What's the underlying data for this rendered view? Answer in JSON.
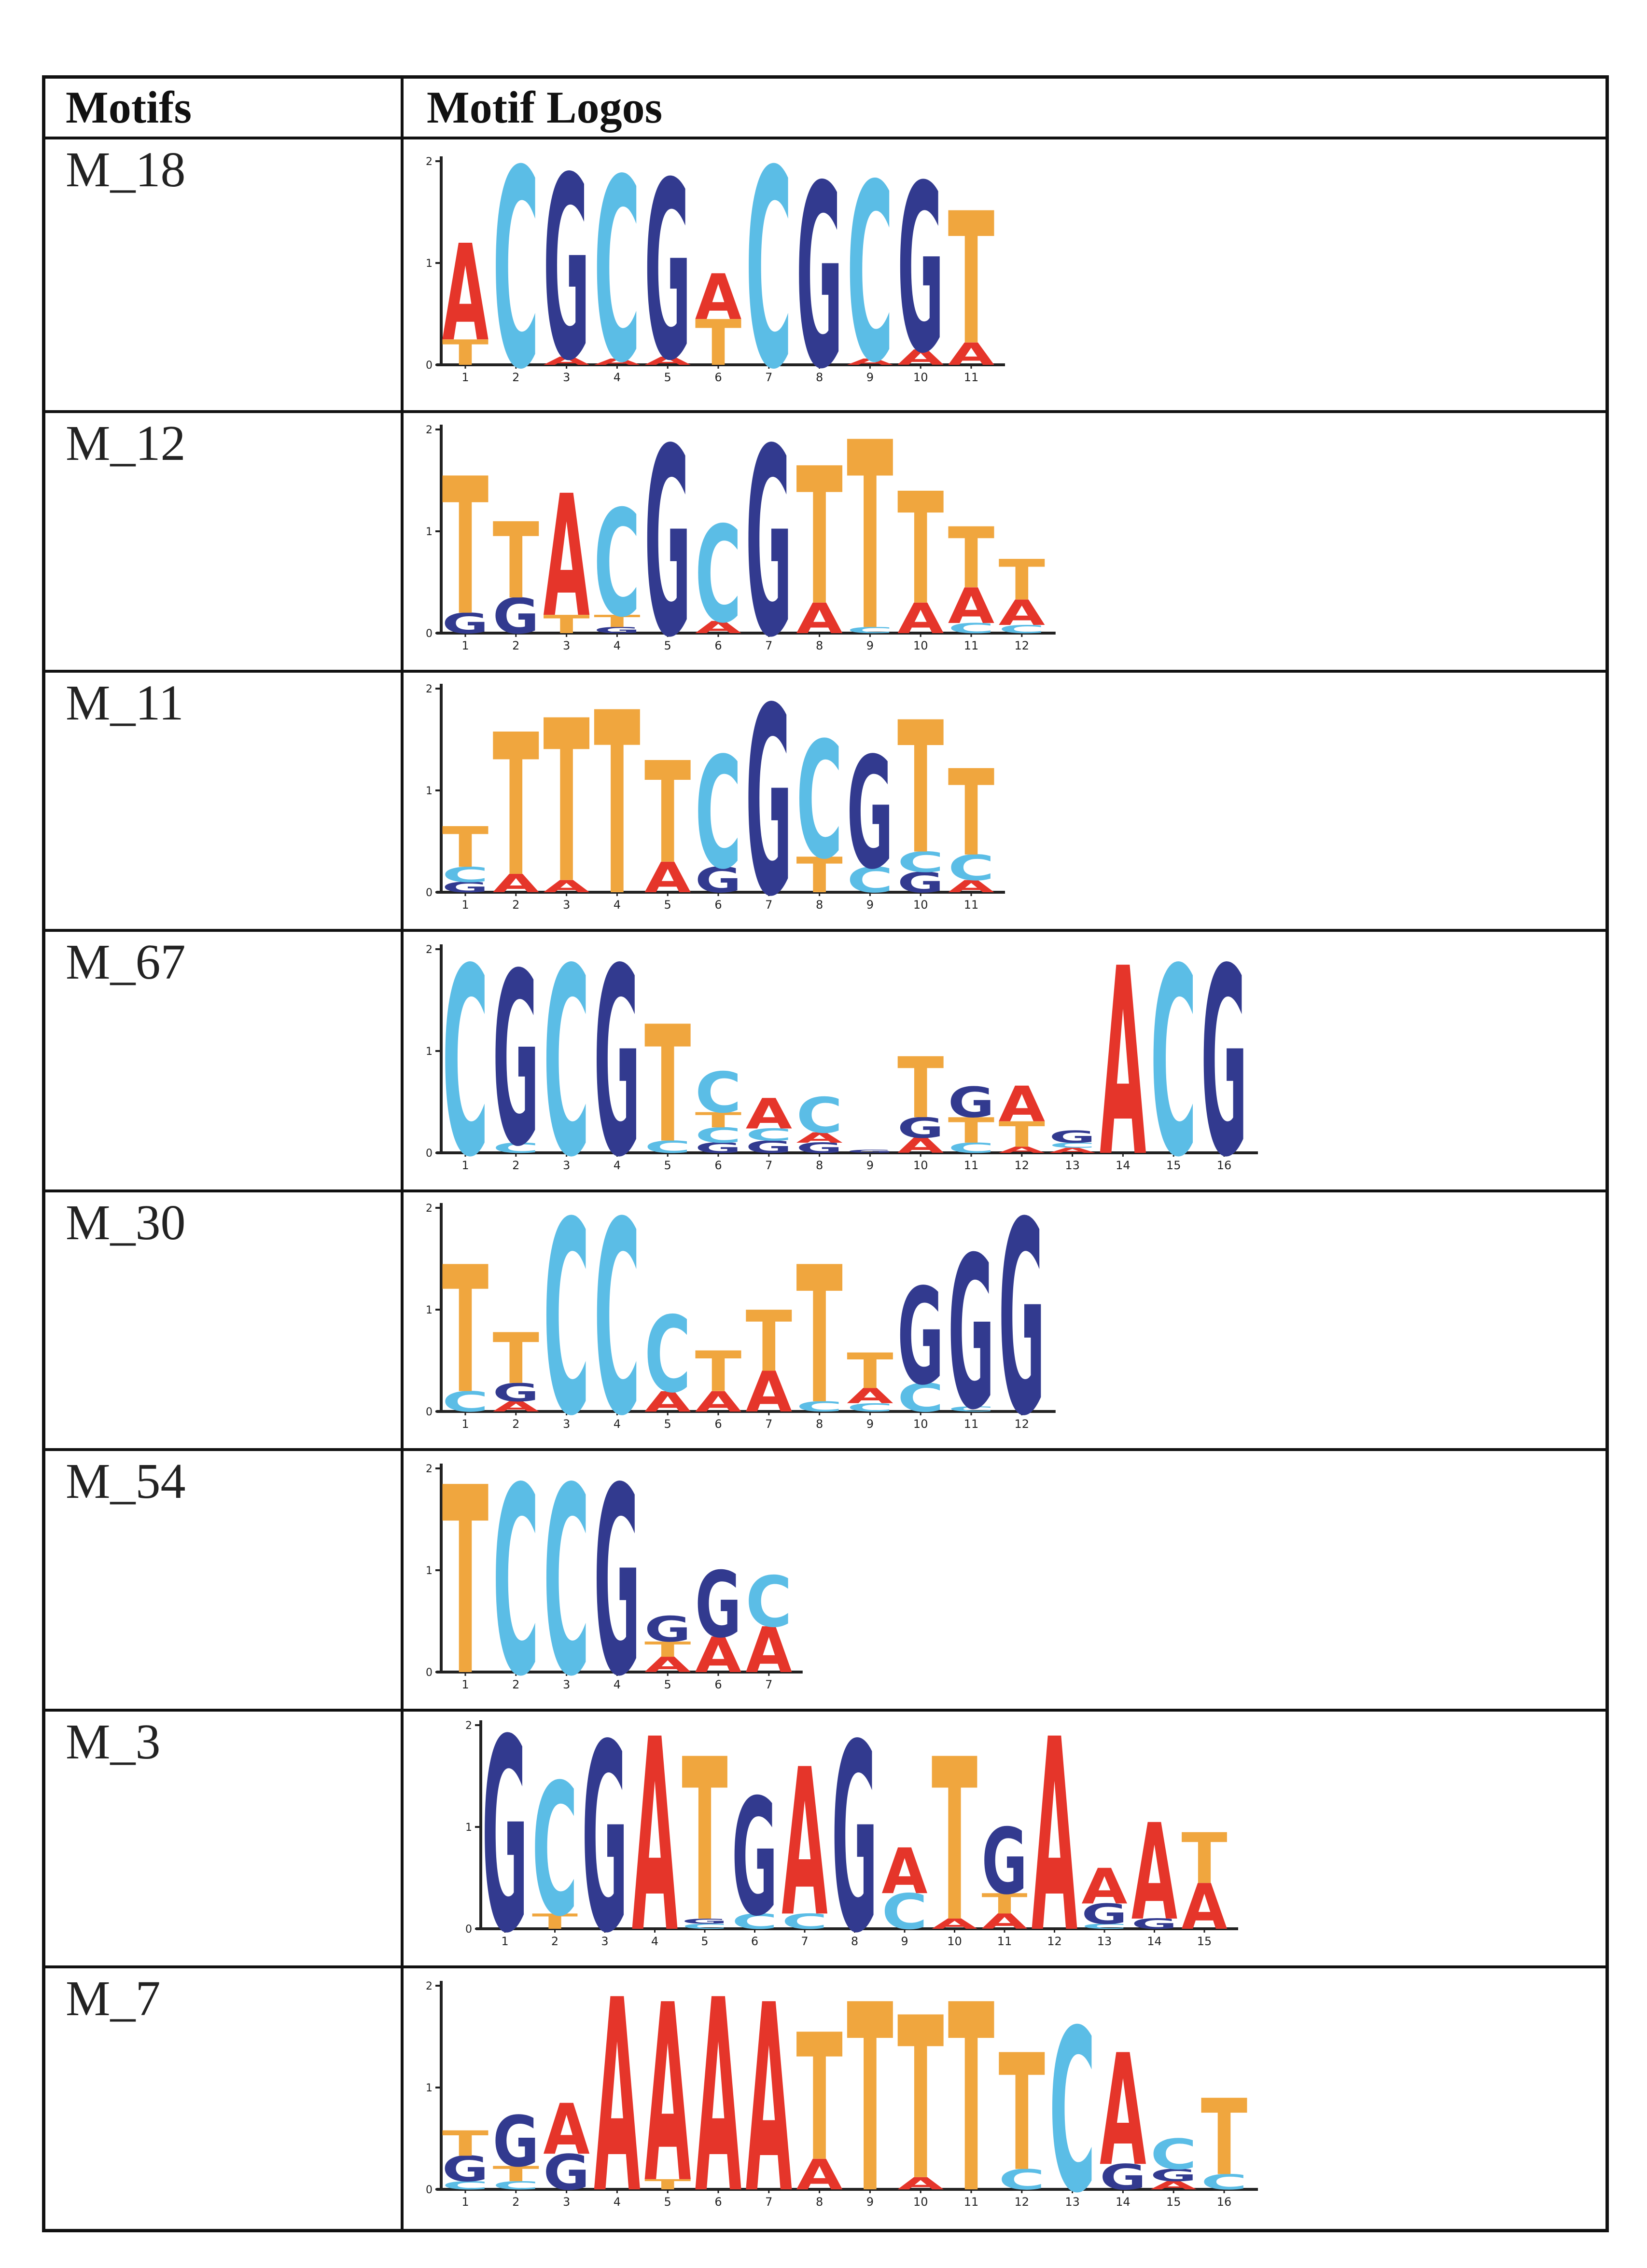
{
  "table": {
    "header": {
      "col1": "Motifs",
      "col2": "Motif Logos"
    },
    "y_ticks": [
      "0",
      "1",
      "2"
    ],
    "rows": [
      {
        "name": "M_18",
        "positions": 11,
        "columns": [
          [
            [
              "T",
              0.25
            ],
            [
              "A",
              0.95
            ]
          ],
          [
            [
              "C",
              1.95
            ]
          ],
          [
            [
              "A",
              0.08
            ],
            [
              "G",
              1.8
            ]
          ],
          [
            [
              "A",
              0.06
            ],
            [
              "C",
              1.8
            ]
          ],
          [
            [
              "A",
              0.08
            ],
            [
              "G",
              1.75
            ]
          ],
          [
            [
              "T",
              0.45
            ],
            [
              "A",
              0.45
            ]
          ],
          [
            [
              "C",
              1.95
            ]
          ],
          [
            [
              "G",
              1.8
            ]
          ],
          [
            [
              "A",
              0.06
            ],
            [
              "C",
              1.75
            ]
          ],
          [
            [
              "A",
              0.15
            ],
            [
              "G",
              1.65
            ]
          ],
          [
            [
              "A",
              0.22
            ],
            [
              "T",
              1.3
            ]
          ]
        ]
      },
      {
        "name": "M_12",
        "positions": 12,
        "columns": [
          [
            [
              "G",
              0.2
            ],
            [
              "T",
              1.35
            ]
          ],
          [
            [
              "G",
              0.35
            ],
            [
              "T",
              0.75
            ]
          ],
          [
            [
              "T",
              0.18
            ],
            [
              "A",
              1.2
            ]
          ],
          [
            [
              "G",
              0.06
            ],
            [
              "T",
              0.12
            ],
            [
              "C",
              1.05
            ]
          ],
          [
            [
              "G",
              1.85
            ]
          ],
          [
            [
              "A",
              0.12
            ],
            [
              "C",
              0.95
            ]
          ],
          [
            [
              "G",
              1.85
            ]
          ],
          [
            [
              "A",
              0.3
            ],
            [
              "T",
              1.35
            ]
          ],
          [
            [
              "C",
              0.06
            ],
            [
              "T",
              1.85
            ]
          ],
          [
            [
              "A",
              0.3
            ],
            [
              "T",
              1.1
            ]
          ],
          [
            [
              "C",
              0.1
            ],
            [
              "A",
              0.35
            ],
            [
              "T",
              0.6
            ]
          ],
          [
            [
              "C",
              0.08
            ],
            [
              "A",
              0.25
            ],
            [
              "T",
              0.4
            ]
          ]
        ]
      },
      {
        "name": "M_11",
        "positions": 11,
        "columns": [
          [
            [
              "G",
              0.1
            ],
            [
              "C",
              0.15
            ],
            [
              "T",
              0.4
            ]
          ],
          [
            [
              "A",
              0.18
            ],
            [
              "T",
              1.4
            ]
          ],
          [
            [
              "A",
              0.12
            ],
            [
              "T",
              1.6
            ]
          ],
          [
            [
              "T",
              1.8
            ]
          ],
          [
            [
              "A",
              0.3
            ],
            [
              "T",
              1.0
            ]
          ],
          [
            [
              "G",
              0.25
            ],
            [
              "C",
              1.1
            ]
          ],
          [
            [
              "G",
              1.85
            ]
          ],
          [
            [
              "T",
              0.35
            ],
            [
              "C",
              1.15
            ]
          ],
          [
            [
              "C",
              0.25
            ],
            [
              "G",
              1.1
            ]
          ],
          [
            [
              "G",
              0.2
            ],
            [
              "C",
              0.2
            ],
            [
              "T",
              1.3
            ]
          ],
          [
            [
              "A",
              0.12
            ],
            [
              "C",
              0.25
            ],
            [
              "T",
              0.85
            ]
          ]
        ]
      },
      {
        "name": "M_67",
        "positions": 16,
        "columns": [
          [
            [
              "C",
              1.85
            ]
          ],
          [
            [
              "C",
              0.1
            ],
            [
              "G",
              1.7
            ]
          ],
          [
            [
              "C",
              1.85
            ]
          ],
          [
            [
              "G",
              1.85
            ]
          ],
          [
            [
              "C",
              0.12
            ],
            [
              "T",
              1.15
            ]
          ],
          [
            [
              "G",
              0.1
            ],
            [
              "C",
              0.15
            ],
            [
              "T",
              0.15
            ],
            [
              "C",
              0.4
            ]
          ],
          [
            [
              "G",
              0.12
            ],
            [
              "C",
              0.12
            ],
            [
              "A",
              0.3
            ]
          ],
          [
            [
              "G",
              0.1
            ],
            [
              "A",
              0.1
            ],
            [
              "C",
              0.35
            ]
          ],
          [
            [
              "G",
              0.03
            ]
          ],
          [
            [
              "A",
              0.15
            ],
            [
              "G",
              0.2
            ],
            [
              "T",
              0.6
            ]
          ],
          [
            [
              "C",
              0.1
            ],
            [
              "T",
              0.25
            ],
            [
              "G",
              0.3
            ]
          ],
          [
            [
              "A",
              0.06
            ],
            [
              "T",
              0.25
            ],
            [
              "A",
              0.35
            ]
          ],
          [
            [
              "A",
              0.05
            ],
            [
              "C",
              0.05
            ],
            [
              "G",
              0.12
            ]
          ],
          [
            [
              "A",
              1.85
            ]
          ],
          [
            [
              "C",
              1.85
            ]
          ],
          [
            [
              "G",
              1.85
            ]
          ]
        ]
      },
      {
        "name": "M_30",
        "positions": 12,
        "columns": [
          [
            [
              "C",
              0.2
            ],
            [
              "T",
              1.25
            ]
          ],
          [
            [
              "A",
              0.1
            ],
            [
              "G",
              0.18
            ],
            [
              "T",
              0.5
            ]
          ],
          [
            [
              "C",
              1.9
            ]
          ],
          [
            [
              "C",
              1.9
            ]
          ],
          [
            [
              "A",
              0.2
            ],
            [
              "C",
              0.75
            ]
          ],
          [
            [
              "A",
              0.2
            ],
            [
              "T",
              0.4
            ]
          ],
          [
            [
              "A",
              0.4
            ],
            [
              "T",
              0.6
            ]
          ],
          [
            [
              "C",
              0.1
            ],
            [
              "T",
              1.35
            ]
          ],
          [
            [
              "C",
              0.08
            ],
            [
              "A",
              0.15
            ],
            [
              "T",
              0.35
            ]
          ],
          [
            [
              "C",
              0.28
            ],
            [
              "G",
              0.95
            ]
          ],
          [
            [
              "C",
              0.05
            ],
            [
              "G",
              1.5
            ]
          ],
          [
            [
              "G",
              1.9
            ]
          ]
        ]
      },
      {
        "name": "M_54",
        "positions": 7,
        "columns": [
          [
            [
              "T",
              1.85
            ]
          ],
          [
            [
              "C",
              1.85
            ]
          ],
          [
            [
              "C",
              1.85
            ]
          ],
          [
            [
              "G",
              1.85
            ]
          ],
          [
            [
              "A",
              0.15
            ],
            [
              "T",
              0.15
            ],
            [
              "G",
              0.25
            ]
          ],
          [
            [
              "A",
              0.35
            ],
            [
              "G",
              0.65
            ]
          ],
          [
            [
              "A",
              0.45
            ],
            [
              "C",
              0.5
            ]
          ]
        ]
      },
      {
        "name": "M_3",
        "positions": 15,
        "columns": [
          [
            [
              "G",
              1.9
            ]
          ],
          [
            [
              "T",
              0.15
            ],
            [
              "C",
              1.3
            ]
          ],
          [
            [
              "G",
              1.85
            ]
          ],
          [
            [
              "A",
              1.9
            ]
          ],
          [
            [
              "C",
              0.05
            ],
            [
              "G",
              0.05
            ],
            [
              "T",
              1.6
            ]
          ],
          [
            [
              "C",
              0.15
            ],
            [
              "G",
              1.15
            ]
          ],
          [
            [
              "C",
              0.15
            ],
            [
              "A",
              1.45
            ]
          ],
          [
            [
              "G",
              1.85
            ]
          ],
          [
            [
              "C",
              0.35
            ],
            [
              "A",
              0.45
            ]
          ],
          [
            [
              "A",
              0.1
            ],
            [
              "T",
              1.6
            ]
          ],
          [
            [
              "A",
              0.15
            ],
            [
              "T",
              0.2
            ],
            [
              "G",
              0.65
            ]
          ],
          [
            [
              "A",
              1.9
            ]
          ],
          [
            [
              "C",
              0.05
            ],
            [
              "G",
              0.2
            ],
            [
              "A",
              0.35
            ]
          ],
          [
            [
              "G",
              0.1
            ],
            [
              "A",
              0.95
            ]
          ],
          [
            [
              "A",
              0.45
            ],
            [
              "T",
              0.5
            ]
          ]
        ]
      },
      {
        "name": "M_7",
        "positions": 16,
        "columns": [
          [
            [
              "C",
              0.08
            ],
            [
              "G",
              0.25
            ],
            [
              "T",
              0.25
            ]
          ],
          [
            [
              "C",
              0.08
            ],
            [
              "T",
              0.15
            ],
            [
              "G",
              0.5
            ]
          ],
          [
            [
              "G",
              0.35
            ],
            [
              "A",
              0.5
            ]
          ],
          [
            [
              "A",
              1.9
            ]
          ],
          [
            [
              "T",
              0.1
            ],
            [
              "A",
              1.75
            ]
          ],
          [
            [
              "A",
              1.9
            ]
          ],
          [
            [
              "A",
              1.85
            ]
          ],
          [
            [
              "A",
              0.3
            ],
            [
              "T",
              1.25
            ]
          ],
          [
            [
              "T",
              1.85
            ]
          ],
          [
            [
              "A",
              0.12
            ],
            [
              "T",
              1.6
            ]
          ],
          [
            [
              "T",
              1.85
            ]
          ],
          [
            [
              "C",
              0.2
            ],
            [
              "T",
              1.15
            ]
          ],
          [
            [
              "C",
              1.6
            ]
          ],
          [
            [
              "G",
              0.25
            ],
            [
              "A",
              1.1
            ]
          ],
          [
            [
              "A",
              0.08
            ],
            [
              "G",
              0.12
            ],
            [
              "C",
              0.3
            ]
          ],
          [
            [
              "C",
              0.15
            ],
            [
              "T",
              0.75
            ]
          ]
        ]
      }
    ]
  },
  "colors": {
    "A": "#e5352a",
    "C": "#5bbde6",
    "G": "#323a8f",
    "T": "#f0a63e",
    "rule": "#111111"
  }
}
